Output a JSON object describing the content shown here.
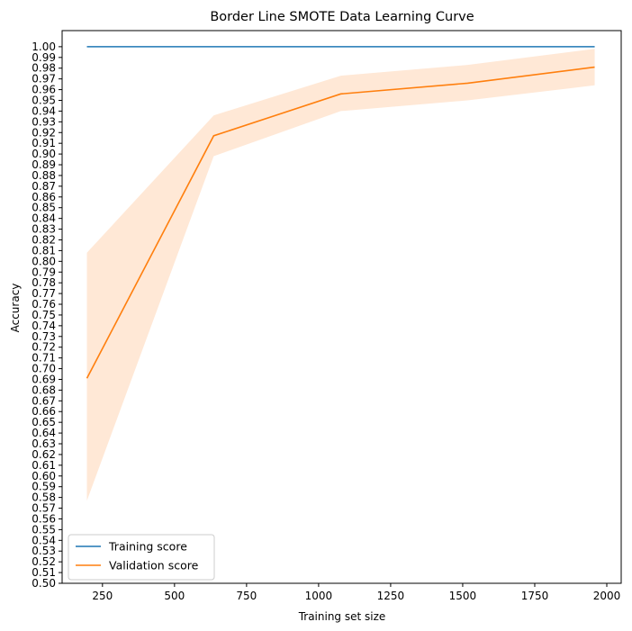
{
  "chart_data": {
    "type": "line",
    "title": "Border Line SMOTE Data Learning Curve",
    "xlabel": "Training set size",
    "ylabel": "Accuracy",
    "xlim": [
      110,
      2050
    ],
    "ylim": [
      0.5,
      1.015
    ],
    "xticks": [
      250,
      500,
      750,
      1000,
      1250,
      1500,
      1750,
      2000
    ],
    "yticks_start": 0.5,
    "yticks_end": 1.0,
    "yticks_step": 0.01,
    "x": [
      196,
      636,
      1077,
      1517,
      1958
    ],
    "series": [
      {
        "name": "Training score",
        "color": "#1f77b4",
        "values": [
          1.0,
          1.0,
          1.0,
          1.0,
          1.0
        ],
        "std_lower": [
          1.0,
          1.0,
          1.0,
          1.0,
          1.0
        ],
        "std_upper": [
          1.0,
          1.0,
          1.0,
          1.0,
          1.0
        ]
      },
      {
        "name": "Validation score",
        "color": "#ff7f0e",
        "values": [
          0.691,
          0.917,
          0.956,
          0.966,
          0.981
        ],
        "std_lower": [
          0.577,
          0.898,
          0.94,
          0.95,
          0.964
        ],
        "std_upper": [
          0.808,
          0.936,
          0.973,
          0.983,
          0.998
        ]
      }
    ],
    "band_color": "#ffe8d6",
    "legend_position": "lower-left",
    "grid": false
  }
}
